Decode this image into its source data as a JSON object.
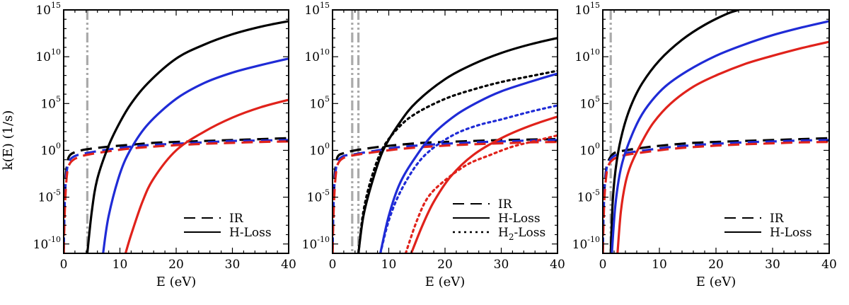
{
  "figure": {
    "ylabel": "k(E) (1/s)",
    "xlabel": "E (eV)",
    "xlim": [
      0,
      40
    ],
    "ylim_log10": [
      -11,
      15
    ],
    "x_ticks": [
      "0",
      "10",
      "20",
      "30",
      "40"
    ],
    "y_ticks": [
      {
        "base": "10",
        "exp": "15"
      },
      {
        "base": "10",
        "exp": "10"
      },
      {
        "base": "10",
        "exp": "5"
      },
      {
        "base": "10",
        "exp": "0"
      },
      {
        "base": "10",
        "exp": "-5"
      },
      {
        "base": "10",
        "exp": "-10"
      }
    ],
    "colors": {
      "black": "#000000",
      "blue": "#1f2bd6",
      "red": "#e0221b",
      "threshold": "#aaaaaa"
    }
  },
  "chart_data": [
    {
      "type": "line",
      "panel": "left",
      "x_scale": "linear",
      "y_scale": "log",
      "xlim": [
        0,
        40
      ],
      "ylim_log10": [
        -11,
        15
      ],
      "legend": [
        {
          "label": "IR",
          "style": "dashed"
        },
        {
          "label": "H-Loss",
          "style": "solid"
        }
      ],
      "thresholds_eV": [
        4.2
      ],
      "series": [
        {
          "name": "IR black",
          "color": "black",
          "style": "dashed",
          "x": [
            0.02,
            0.1,
            0.3,
            0.6,
            1,
            2,
            4,
            8,
            12,
            16,
            20,
            25,
            30,
            35,
            40
          ],
          "log10_y": [
            -10.5,
            -7.5,
            -3.5,
            -1.5,
            -0.6,
            -0.2,
            0.1,
            0.4,
            0.6,
            0.8,
            0.9,
            1.0,
            1.1,
            1.2,
            1.3
          ]
        },
        {
          "name": "IR blue",
          "color": "blue",
          "style": "dashed",
          "x": [
            0.02,
            0.1,
            0.3,
            0.6,
            1,
            2,
            4,
            8,
            12,
            16,
            20,
            25,
            30,
            35,
            40
          ],
          "log10_y": [
            -10.5,
            -7.5,
            -4.0,
            -2.0,
            -1.1,
            -0.6,
            -0.3,
            0.1,
            0.4,
            0.6,
            0.7,
            0.85,
            1.0,
            1.05,
            1.1
          ]
        },
        {
          "name": "IR red",
          "color": "red",
          "style": "dashed",
          "x": [
            0.02,
            0.1,
            0.3,
            0.6,
            1,
            2,
            4,
            8,
            12,
            16,
            20,
            25,
            30,
            35,
            40
          ],
          "log10_y": [
            -11,
            -8.5,
            -5.0,
            -2.5,
            -1.5,
            -0.9,
            -0.5,
            -0.1,
            0.2,
            0.4,
            0.55,
            0.7,
            0.8,
            0.9,
            0.95
          ]
        },
        {
          "name": "H-Loss black",
          "color": "black",
          "style": "solid",
          "x": [
            4.2,
            5,
            6,
            8,
            10,
            12,
            15,
            20,
            25,
            30,
            35,
            40
          ],
          "log10_y": [
            -11,
            -6.5,
            -3,
            0.5,
            3,
            5,
            7.2,
            9.8,
            11.3,
            12.4,
            13.2,
            13.8
          ]
        },
        {
          "name": "H-Loss blue",
          "color": "blue",
          "style": "solid",
          "x": [
            7.0,
            8,
            10,
            12,
            15,
            20,
            25,
            30,
            35,
            40
          ],
          "log10_y": [
            -11,
            -7,
            -2.5,
            0.2,
            2.8,
            5.5,
            7.2,
            8.3,
            9.1,
            9.8
          ]
        },
        {
          "name": "H-Loss red",
          "color": "red",
          "style": "solid",
          "x": [
            11.0,
            12,
            14,
            16,
            20,
            25,
            30,
            35,
            40
          ],
          "log10_y": [
            -11,
            -9,
            -5.5,
            -3.0,
            0,
            2.0,
            3.5,
            4.6,
            5.4
          ]
        }
      ]
    },
    {
      "type": "line",
      "panel": "middle",
      "x_scale": "linear",
      "y_scale": "log",
      "xlim": [
        0,
        40
      ],
      "ylim_log10": [
        -11,
        15
      ],
      "legend": [
        {
          "label": "IR",
          "style": "dashed"
        },
        {
          "label": "H-Loss",
          "style": "solid"
        },
        {
          "label": "H",
          "sub": "2",
          "suffix": "-Loss",
          "style": "dotted"
        }
      ],
      "thresholds_eV": [
        3.5,
        4.6
      ],
      "series": [
        {
          "name": "IR black",
          "color": "black",
          "style": "dashed",
          "x": [
            0.02,
            0.1,
            0.3,
            0.6,
            1,
            2,
            4,
            8,
            12,
            16,
            20,
            25,
            30,
            35,
            40
          ],
          "log10_y": [
            -10.5,
            -7.5,
            -3.5,
            -1.5,
            -0.6,
            -0.3,
            0.0,
            0.35,
            0.6,
            0.8,
            0.9,
            1.0,
            1.1,
            1.15,
            1.2
          ]
        },
        {
          "name": "IR blue",
          "color": "blue",
          "style": "dashed",
          "x": [
            0.02,
            0.1,
            0.3,
            0.6,
            1,
            2,
            4,
            8,
            12,
            16,
            20,
            25,
            30,
            35,
            40
          ],
          "log10_y": [
            -10.5,
            -7.5,
            -4.0,
            -2.0,
            -1.1,
            -0.6,
            -0.4,
            0.0,
            0.35,
            0.55,
            0.7,
            0.85,
            0.95,
            1.05,
            1.1
          ]
        },
        {
          "name": "IR red",
          "color": "red",
          "style": "dashed",
          "x": [
            0.02,
            0.1,
            0.3,
            0.6,
            1,
            2,
            4,
            8,
            12,
            16,
            20,
            25,
            30,
            35,
            40
          ],
          "log10_y": [
            -11,
            -8.5,
            -5.0,
            -2.5,
            -1.4,
            -0.8,
            -0.5,
            -0.15,
            0.15,
            0.35,
            0.5,
            0.65,
            0.75,
            0.85,
            0.9
          ]
        },
        {
          "name": "H-Loss black",
          "color": "black",
          "style": "solid",
          "x": [
            4.6,
            5.5,
            7,
            9,
            12,
            15,
            20,
            25,
            30,
            35,
            40
          ],
          "log10_y": [
            -11,
            -7,
            -3.5,
            0,
            3,
            5.2,
            7.6,
            9.2,
            10.4,
            11.3,
            12.0
          ]
        },
        {
          "name": "H-Loss blue",
          "color": "blue",
          "style": "solid",
          "x": [
            8.5,
            10,
            12,
            15,
            18,
            22,
            26,
            30,
            35,
            40
          ],
          "log10_y": [
            -11,
            -7,
            -3.5,
            -0.5,
            1.8,
            3.8,
            5.2,
            6.3,
            7.3,
            8.2
          ]
        },
        {
          "name": "H-Loss red",
          "color": "red",
          "style": "solid",
          "x": [
            14.0,
            16,
            18,
            21,
            25,
            30,
            35,
            40
          ],
          "log10_y": [
            -11,
            -8,
            -5.5,
            -2.8,
            -0.5,
            1.3,
            2.6,
            3.6
          ]
        },
        {
          "name": "H2-Loss black",
          "color": "black",
          "style": "dotted",
          "x": [
            4.6,
            5.5,
            7,
            9,
            12,
            15,
            20,
            25,
            30,
            35,
            40
          ],
          "log10_y": [
            -11,
            -6.5,
            -2.8,
            0.3,
            2.6,
            4.0,
            5.5,
            6.5,
            7.3,
            7.9,
            8.5
          ]
        },
        {
          "name": "H2-Loss blue",
          "color": "blue",
          "style": "dotted",
          "x": [
            8.5,
            10,
            12,
            15,
            18,
            22,
            26,
            30,
            35,
            40
          ],
          "log10_y": [
            -11,
            -7.5,
            -4.5,
            -1.5,
            0.3,
            1.8,
            2.7,
            3.3,
            4.1,
            4.8
          ]
        },
        {
          "name": "H2-Loss red",
          "color": "red",
          "style": "dotted",
          "x": [
            13.0,
            15,
            17,
            20,
            24,
            28,
            32,
            36,
            40
          ],
          "log10_y": [
            -11,
            -7.5,
            -5.0,
            -3.2,
            -1.5,
            -0.5,
            0.4,
            1.0,
            1.6
          ]
        }
      ]
    },
    {
      "type": "line",
      "panel": "right",
      "x_scale": "linear",
      "y_scale": "log",
      "xlim": [
        0,
        40
      ],
      "ylim_log10": [
        -11,
        15
      ],
      "legend": [
        {
          "label": "IR",
          "style": "dashed"
        },
        {
          "label": "H-Loss",
          "style": "solid"
        }
      ],
      "thresholds_eV": [
        1.4
      ],
      "series": [
        {
          "name": "IR black",
          "color": "black",
          "style": "dashed",
          "x": [
            0.02,
            0.1,
            0.3,
            0.6,
            1,
            2,
            4,
            8,
            12,
            16,
            20,
            25,
            30,
            35,
            40
          ],
          "log10_y": [
            -10.5,
            -7.5,
            -4.0,
            -2.0,
            -1.1,
            -0.3,
            0.0,
            0.35,
            0.6,
            0.8,
            0.9,
            1.0,
            1.1,
            1.2,
            1.3
          ]
        },
        {
          "name": "IR blue",
          "color": "blue",
          "style": "dashed",
          "x": [
            0.02,
            0.1,
            0.3,
            0.6,
            1,
            2,
            4,
            8,
            12,
            16,
            20,
            25,
            30,
            35,
            40
          ],
          "log10_y": [
            -10.5,
            -7.5,
            -4.2,
            -2.2,
            -1.3,
            -0.6,
            -0.3,
            0.05,
            0.35,
            0.55,
            0.7,
            0.85,
            0.95,
            1.05,
            1.1
          ]
        },
        {
          "name": "IR red",
          "color": "red",
          "style": "dashed",
          "x": [
            0.02,
            0.1,
            0.3,
            0.6,
            1,
            2,
            4,
            8,
            12,
            16,
            20,
            25,
            30,
            35,
            40
          ],
          "log10_y": [
            -11,
            -8.5,
            -5.0,
            -2.8,
            -1.6,
            -0.9,
            -0.5,
            -0.15,
            0.15,
            0.35,
            0.5,
            0.65,
            0.75,
            0.85,
            0.9
          ]
        },
        {
          "name": "H-Loss black",
          "color": "black",
          "style": "solid",
          "x": [
            1.4,
            1.8,
            2.5,
            3.5,
            5,
            7,
            10,
            14,
            18,
            22,
            24
          ],
          "log10_y": [
            -11,
            -5,
            -1,
            2,
            4.8,
            7.2,
            9.6,
            11.8,
            13.4,
            14.6,
            15
          ]
        },
        {
          "name": "H-Loss blue",
          "color": "blue",
          "style": "solid",
          "x": [
            1.6,
            2.2,
            3,
            4,
            6,
            8,
            11,
            15,
            20,
            25,
            30,
            35,
            40
          ],
          "log10_y": [
            -11,
            -6,
            -2.5,
            -0.2,
            2.8,
            4.8,
            6.8,
            8.5,
            10.1,
            11.3,
            12.3,
            13.1,
            13.8
          ]
        },
        {
          "name": "H-Loss red",
          "color": "red",
          "style": "solid",
          "x": [
            2.6,
            3.2,
            4,
            5,
            7,
            9,
            12,
            16,
            20,
            25,
            30,
            35,
            40
          ],
          "log10_y": [
            -11,
            -6.5,
            -3.5,
            -1.5,
            1.0,
            3.0,
            5.0,
            6.8,
            8.0,
            9.2,
            10.1,
            10.9,
            11.6
          ]
        }
      ]
    }
  ]
}
